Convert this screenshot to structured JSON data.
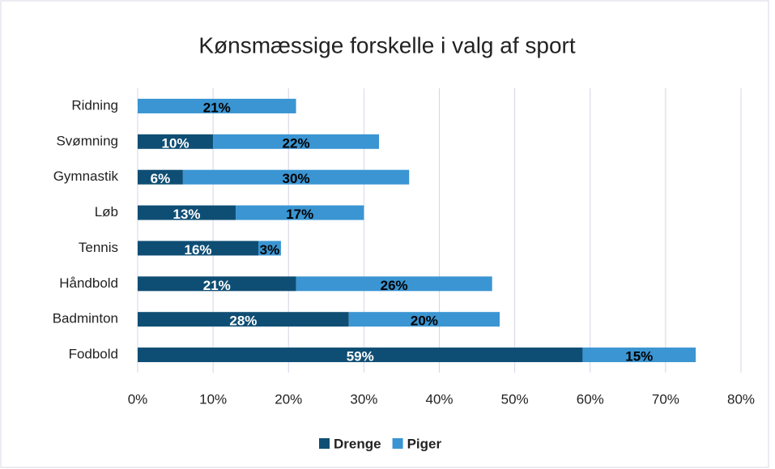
{
  "chart_data": {
    "type": "stacked-bar-horizontal",
    "title": "Kønsmæssige forskelle i valg af sport",
    "categories": [
      "Ridning",
      "Svømning",
      "Gymnastik",
      "Løb",
      "Tennis",
      "Håndbold",
      "Badminton",
      "Fodbold"
    ],
    "series": [
      {
        "name": "Drenge",
        "color": "#0f4e74",
        "values": [
          0,
          10,
          6,
          13,
          16,
          21,
          28,
          59
        ],
        "value_labels": [
          "%",
          "10%",
          "6%",
          "13%",
          "16%",
          "21%",
          "28%",
          "59%"
        ]
      },
      {
        "name": "Piger",
        "color": "#3a95d2",
        "values": [
          21,
          22,
          30,
          17,
          3,
          26,
          20,
          15
        ],
        "value_labels": [
          "21%",
          "22%",
          "30%",
          "17%",
          "3%",
          "26%",
          "20%",
          "15%"
        ]
      }
    ],
    "xlim": [
      0,
      80
    ],
    "xticks": [
      {
        "value": 0,
        "label": "0%"
      },
      {
        "value": 10,
        "label": "10%"
      },
      {
        "value": 20,
        "label": "20%"
      },
      {
        "value": 30,
        "label": "30%"
      },
      {
        "value": 40,
        "label": "40%"
      },
      {
        "value": 50,
        "label": "50%"
      },
      {
        "value": 60,
        "label": "60%"
      },
      {
        "value": 70,
        "label": "70%"
      },
      {
        "value": 80,
        "label": "80%"
      }
    ],
    "grid": true,
    "legend": "bottom"
  }
}
